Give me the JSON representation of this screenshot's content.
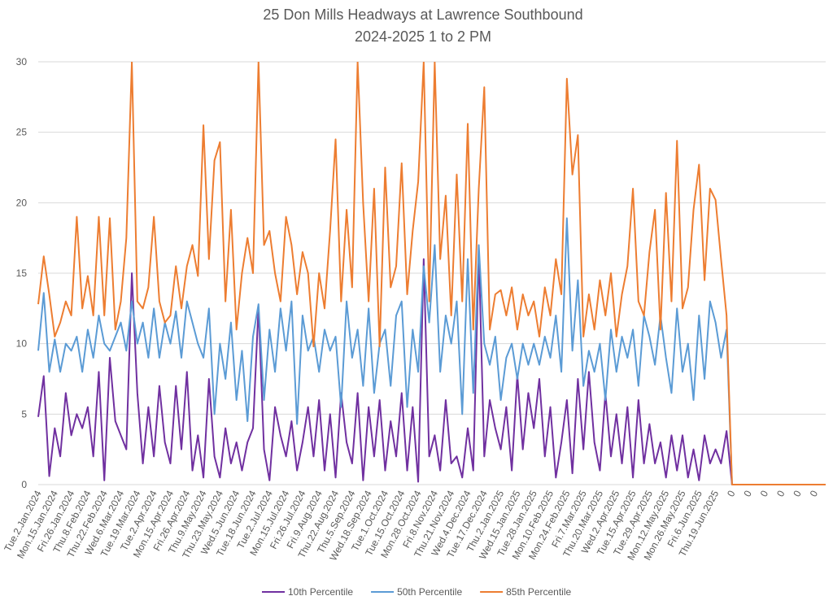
{
  "chart_data": {
    "type": "line",
    "title": "25 Don Mills Headways at Lawrence Southbound",
    "subtitle": "2024-2025 1 to 2 PM",
    "categories": [
      "Tue.2.Jan.2024",
      null,
      null,
      "Mon.15.Jan.2024",
      null,
      null,
      "Fri.26.Jan.2024",
      null,
      null,
      "Thu.8.Feb.2024",
      null,
      null,
      "Thu.22.Feb.2024",
      null,
      null,
      "Wed.6.Mar.2024",
      null,
      null,
      "Tue.19.Mar.2024",
      null,
      null,
      "Tue.2.Apr.2024",
      null,
      null,
      "Mon.15.Apr.2024",
      null,
      null,
      "Fri.26.Apr.2024",
      null,
      null,
      "Thu.9.May.2024",
      null,
      null,
      "Thu.23.May.2024",
      null,
      null,
      "Wed.5.Jun.2024",
      null,
      null,
      "Tue.18.Jun.2024",
      null,
      null,
      "Tue.2.Jul.2024",
      null,
      null,
      "Mon.15.Jul.2024",
      null,
      null,
      "Fri.26.Jul.2024",
      null,
      null,
      "Fri.9.Aug.2024",
      null,
      null,
      "Thu.22.Aug.2024",
      null,
      null,
      "Thu.5.Sep.2024",
      null,
      null,
      "Wed.18.Sep.2024",
      null,
      null,
      "Tue.1.Oct.2024",
      null,
      null,
      "Tue.15.Oct.2024",
      null,
      null,
      "Mon.28.Oct.2024",
      null,
      null,
      "Fri.8.Nov.2024",
      null,
      null,
      "Thu.21.Nov.2024",
      null,
      null,
      "Wed.4.Dec.2024",
      null,
      null,
      "Tue.17.Dec.2024",
      null,
      null,
      "Thu.2.Jan.2025",
      null,
      null,
      "Wed.15.Jan.2025",
      null,
      null,
      "Tue.28.Jan.2025",
      null,
      null,
      "Mon.10.Feb.2025",
      null,
      null,
      "Mon.24.Feb.2025",
      null,
      null,
      "Fri.7.Mar.2025",
      null,
      null,
      "Thu.20.Mar.2025",
      null,
      null,
      "Wed.2.Apr.2025",
      null,
      null,
      "Tue.15.Apr.2025",
      null,
      null,
      "Tue.29.Apr.2025",
      null,
      null,
      "Mon.12.May.2025",
      null,
      null,
      "Mon.26.May.2025",
      null,
      null,
      "Fri.6.Jun.2025",
      null,
      null,
      "Thu.19.Jun.2025",
      null,
      null,
      "0",
      null,
      null,
      "0",
      null,
      null,
      "0",
      null,
      null,
      "0",
      null,
      null,
      "0",
      null,
      null,
      "0",
      null,
      null
    ],
    "series": [
      {
        "name": "10th Percentile",
        "color": "#7030a0",
        "values": [
          4.8,
          7.7,
          0.6,
          4,
          2,
          6.5,
          3.5,
          5,
          4,
          5.5,
          2,
          8,
          0.3,
          9,
          4.5,
          3.5,
          2.5,
          15,
          6.5,
          1.5,
          5.5,
          2,
          7,
          3,
          1.5,
          7,
          2.5,
          8,
          1,
          3.5,
          0.5,
          7.5,
          2,
          0.5,
          4,
          1.5,
          3,
          1,
          3,
          4,
          12.6,
          2.5,
          0.3,
          5.5,
          3.5,
          2,
          4.5,
          1,
          3,
          5.5,
          2,
          6,
          1,
          5,
          0.5,
          6.5,
          3,
          1.5,
          6.5,
          0.3,
          5.5,
          2,
          6,
          1,
          4.5,
          2,
          6.5,
          1,
          5.5,
          0.2,
          16,
          2,
          3.5,
          1,
          6,
          1.5,
          2,
          0.5,
          4,
          1,
          16.5,
          2,
          6,
          4,
          2.5,
          5.5,
          1,
          7.8,
          2.5,
          6.5,
          4,
          7.5,
          2,
          5.5,
          0.5,
          3,
          6,
          0.8,
          7.5,
          2.5,
          8,
          3,
          1,
          6.5,
          2,
          5,
          1.5,
          5.5,
          0.5,
          6,
          1.5,
          4.3,
          1.5,
          3,
          0.5,
          3.5,
          1,
          3.5,
          0.5,
          2.5,
          0.3,
          3.5,
          1.5,
          2.5,
          1.5,
          3.8,
          0,
          0,
          0,
          0,
          0,
          0,
          0,
          0,
          0,
          0,
          0,
          0,
          0,
          0,
          0,
          0,
          0,
          0
        ]
      },
      {
        "name": "50th Percentile",
        "color": "#5b9bd5",
        "values": [
          9.5,
          13.6,
          8,
          10.3,
          8,
          10,
          9.5,
          10.5,
          8,
          11,
          9,
          12,
          10,
          9.5,
          10.5,
          11.5,
          9.5,
          13,
          10,
          11.5,
          9,
          12.5,
          9,
          11.5,
          10,
          12.3,
          9,
          13,
          11.5,
          10,
          9,
          12.5,
          5,
          10,
          7.5,
          11.5,
          6,
          9.5,
          4.5,
          10.5,
          12.8,
          6,
          11,
          8,
          12.5,
          9.5,
          13,
          4.3,
          12,
          9.5,
          10.5,
          8,
          11,
          9.5,
          10.5,
          5.5,
          13,
          9,
          11,
          7,
          12.5,
          6.5,
          10,
          11,
          7,
          12,
          13,
          5.5,
          11,
          8,
          15.5,
          11.5,
          17,
          8,
          12,
          10,
          13,
          5,
          16,
          6.5,
          17,
          10,
          8.5,
          10.5,
          6,
          9,
          10,
          7.5,
          10,
          8.5,
          10,
          8.5,
          10.5,
          9,
          12,
          8,
          18.9,
          9.5,
          14.5,
          7,
          9.5,
          8,
          10,
          6,
          11,
          8,
          10.5,
          9,
          11,
          7,
          12,
          10.5,
          8.5,
          12,
          9,
          6.5,
          12.5,
          8,
          10,
          6,
          12,
          7.5,
          13,
          11.5,
          9,
          11,
          0,
          0,
          0,
          0,
          0,
          0,
          0,
          0,
          0,
          0,
          0,
          0,
          0,
          0,
          0,
          0,
          0,
          0
        ]
      },
      {
        "name": "85th Percentile",
        "color": "#ed7d31",
        "values": [
          12.8,
          16.2,
          13.5,
          10.5,
          11.5,
          13,
          12,
          19,
          12.5,
          14.8,
          12,
          19,
          12,
          18.9,
          11,
          13,
          17.5,
          30,
          13,
          12.5,
          14,
          19,
          13,
          11.5,
          12,
          15.5,
          12.5,
          15.5,
          17,
          14.8,
          25.5,
          16,
          23,
          24.3,
          13,
          19.5,
          11,
          15,
          17.5,
          15,
          30,
          17,
          18,
          15,
          13,
          19,
          17,
          13.5,
          16.5,
          15,
          9.8,
          15,
          12.5,
          18,
          24.5,
          13,
          19.5,
          14,
          30,
          20,
          13,
          21,
          9.8,
          22.5,
          14,
          15.5,
          22.8,
          13.5,
          18,
          21.5,
          30,
          13,
          30,
          16,
          20.5,
          12,
          22,
          13,
          25.6,
          11,
          21,
          28.2,
          11,
          13.5,
          13.8,
          12,
          14,
          11,
          13.5,
          12,
          13,
          10.5,
          14,
          12,
          16,
          13.5,
          28.8,
          22,
          24.8,
          10.5,
          13.5,
          11,
          14.5,
          12,
          15,
          10.5,
          13.5,
          15.5,
          21,
          13,
          12,
          16.5,
          19.5,
          11,
          20.7,
          13,
          24.4,
          12.5,
          14,
          19.5,
          22.7,
          14.5,
          21,
          20.2,
          16,
          12,
          0,
          0,
          0,
          0,
          0,
          0,
          0,
          0,
          0,
          0,
          0,
          0,
          0,
          0,
          0,
          0,
          0,
          0
        ]
      }
    ],
    "ylim": [
      0,
      30
    ],
    "yticks": [
      0,
      5,
      10,
      15,
      20,
      25,
      30
    ],
    "grid": true
  }
}
